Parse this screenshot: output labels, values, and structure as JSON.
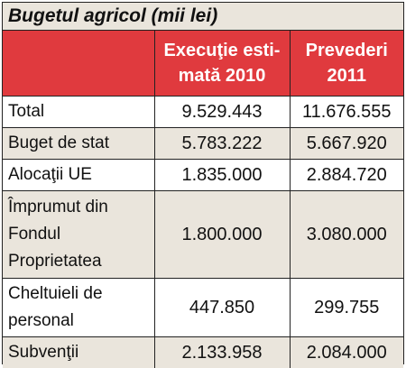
{
  "title": "Bugetul agricol (mii lei)",
  "headers": [
    "",
    "Execuţie esti-mată 2010",
    "Prevederi 2011"
  ],
  "rows": [
    {
      "label": "Total",
      "exec_2010": "9.529.443",
      "prev_2011": "11.676.555"
    },
    {
      "label": "Buget de stat",
      "exec_2010": "5.783.222",
      "prev_2011": "5.667.920"
    },
    {
      "label": "Alocaţii UE",
      "exec_2010": "1.835.000",
      "prev_2011": "2.884.720"
    },
    {
      "label": "Împrumut din Fondul Proprietatea",
      "exec_2010": "1.800.000",
      "prev_2011": "3.080.000"
    },
    {
      "label": "Cheltuieli de personal",
      "exec_2010": "447.850",
      "prev_2011": "299.755"
    },
    {
      "label": "Subvenţii",
      "exec_2010": "2.133.958",
      "prev_2011": "2.084.000"
    }
  ],
  "colors": {
    "header_bg": "#e03a3e",
    "alt_row_bg": "#eae5dc",
    "border": "#222222"
  }
}
